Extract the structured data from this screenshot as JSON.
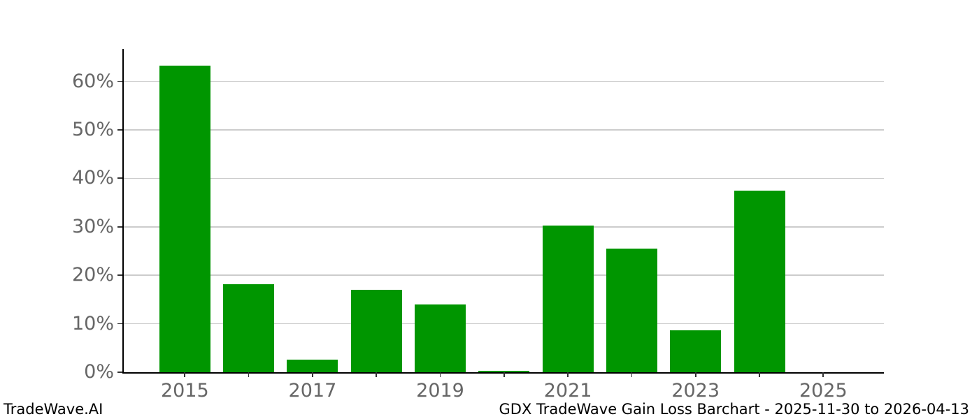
{
  "footer": {
    "brand": "TradeWave.AI",
    "title": "GDX TradeWave Gain Loss Barchart - 2025-11-30 to 2026-04-13"
  },
  "chart_data": {
    "type": "bar",
    "title": "GDX TradeWave Gain Loss Barchart - 2025-11-30 to 2026-04-13",
    "xlabel": "",
    "ylabel": "",
    "categories": [
      "2015",
      "2016",
      "2017",
      "2018",
      "2019",
      "2020",
      "2021",
      "2022",
      "2023",
      "2024",
      "2025"
    ],
    "values": [
      63.3,
      18.2,
      2.6,
      17.0,
      14.0,
      0.3,
      30.3,
      25.5,
      8.7,
      37.5,
      0.0
    ],
    "ylim": [
      0,
      66.7
    ],
    "yticks": [
      0,
      10,
      20,
      30,
      40,
      50,
      60
    ],
    "ytick_suffix": "%",
    "xticks_labeled": [
      "2015",
      "2017",
      "2019",
      "2021",
      "2023",
      "2025"
    ],
    "grid": "horizontal",
    "legend": "none",
    "colors": {
      "bar": "#009600",
      "grid": "#cccccc",
      "axis": "#000000",
      "tick_label": "#666666",
      "background": "#ffffff"
    }
  }
}
